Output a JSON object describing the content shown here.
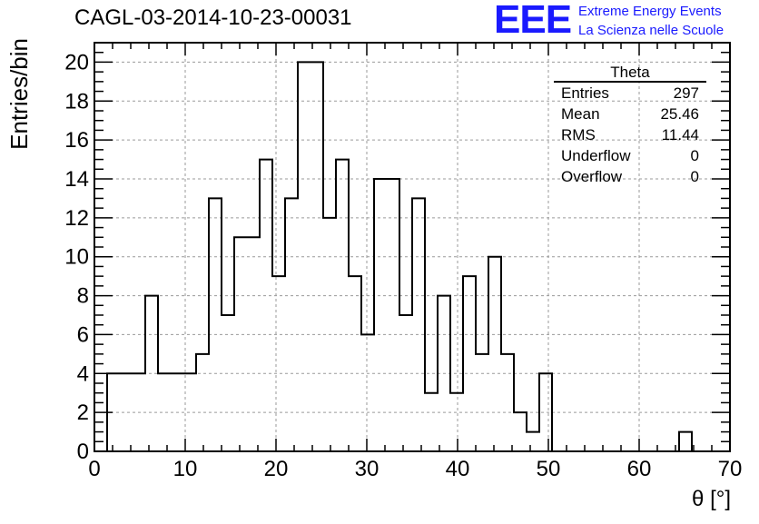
{
  "title": "CAGL-03-2014-10-23-00031",
  "logo": {
    "mark": "EEE",
    "line1": "Extreme Energy Events",
    "line2": "La Scienza nelle Scuole",
    "color": "#1a1aff"
  },
  "stats": {
    "name": "Theta",
    "rows": [
      {
        "label": "Entries",
        "value": "297"
      },
      {
        "label": "Mean",
        "value": "25.46"
      },
      {
        "label": "RMS",
        "value": "11.44"
      },
      {
        "label": "Underflow",
        "value": "0"
      },
      {
        "label": "Overflow",
        "value": "0"
      }
    ]
  },
  "chart_data": {
    "type": "bar",
    "style": "step-histogram",
    "title": "CAGL-03-2014-10-23-00031",
    "xlabel": "θ [°]",
    "ylabel": "Entries/bin",
    "xlim": [
      0,
      70
    ],
    "ylim": [
      0,
      21
    ],
    "xticks": [
      0,
      10,
      20,
      30,
      40,
      50,
      60,
      70
    ],
    "yticks": [
      0,
      2,
      4,
      6,
      8,
      10,
      12,
      14,
      16,
      18,
      20
    ],
    "grid": true,
    "bin_edges": [
      1.4,
      2.8,
      4.2,
      5.6,
      7.0,
      8.4,
      9.8,
      11.2,
      12.6,
      14.0,
      15.4,
      16.8,
      18.2,
      19.6,
      21.0,
      22.4,
      23.8,
      25.2,
      26.6,
      28.0,
      29.4,
      30.8,
      32.2,
      33.6,
      35.0,
      36.4,
      37.8,
      39.2,
      40.6,
      42.0,
      43.4,
      44.8,
      46.2,
      47.6,
      49.0,
      50.4,
      51.8,
      53.2,
      54.6,
      56.0,
      57.4,
      58.8,
      60.2,
      61.6,
      63.0,
      64.4,
      65.8
    ],
    "values": [
      4,
      4,
      4,
      8,
      4,
      4,
      4,
      5,
      13,
      7,
      11,
      11,
      15,
      9,
      13,
      20,
      20,
      12,
      15,
      9,
      6,
      14,
      14,
      7,
      13,
      3,
      8,
      3,
      9,
      5,
      10,
      5,
      2,
      1,
      4,
      0,
      0,
      0,
      0,
      0,
      0,
      0,
      0,
      0,
      0,
      1
    ],
    "line_color": "#000000",
    "grid_color": "#9a9a9a"
  }
}
